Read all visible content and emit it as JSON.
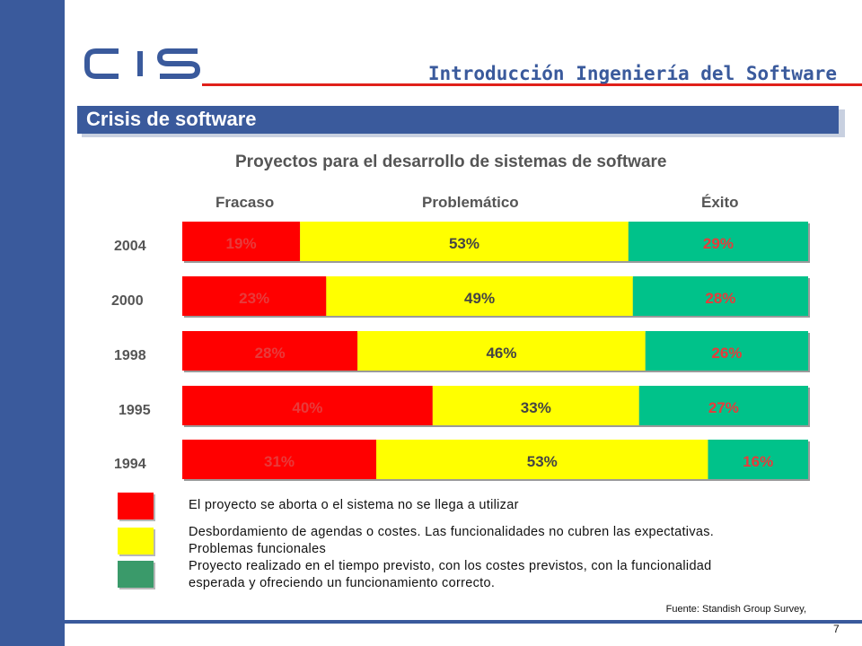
{
  "header": {
    "logo_text": "CIS",
    "title": "Introducción Ingeniería del Software"
  },
  "section": {
    "title": "Crisis de software"
  },
  "chart_data": {
    "type": "bar",
    "orientation": "horizontal",
    "stacked": true,
    "title": "Proyectos para el desarrollo de sistemas de software",
    "categories": [
      "2004",
      "2000",
      "1998",
      "1995",
      "1994"
    ],
    "series": [
      {
        "name": "Fracaso",
        "values": [
          19,
          23,
          28,
          40,
          31
        ],
        "labels": [
          "19%",
          "23%",
          "28%",
          "40%",
          "31%"
        ],
        "color": "#ff0000"
      },
      {
        "name": "Problemático",
        "values": [
          53,
          49,
          46,
          33,
          53
        ],
        "labels": [
          "53%",
          "49%",
          "46%",
          "33%",
          "53%"
        ],
        "color": "#ffff00"
      },
      {
        "name": "Éxito",
        "values": [
          29,
          28,
          26,
          27,
          16
        ],
        "labels": [
          "29%",
          "28%",
          "26%",
          "27%",
          "16%"
        ],
        "color": "#00c28a"
      }
    ],
    "legend_position": "top",
    "grid": false
  },
  "legend": {
    "items": [
      {
        "color": "#ff0000",
        "text": "El proyecto se aborta o el sistema no se llega a utilizar"
      },
      {
        "color": "#ffff00",
        "text": "Desbordamiento de agendas o costes. Las funcionalidades no cubren las expectativas. Problemas funcionales"
      },
      {
        "color": "#3a9a6a",
        "text": "Proyecto realizado en el tiempo previsto, con los costes previstos, con la funcionalidad esperada y ofreciendo un funcionamiento correcto."
      }
    ]
  },
  "footer": {
    "source": "Fuente: Standish Group Survey,",
    "page_number": "7"
  },
  "colors": {
    "brand_blue": "#3a5a9c",
    "accent_red": "#e0201a",
    "label_red": "#e83a3a",
    "label_dark": "#444444",
    "label_white": "#ffffff"
  }
}
